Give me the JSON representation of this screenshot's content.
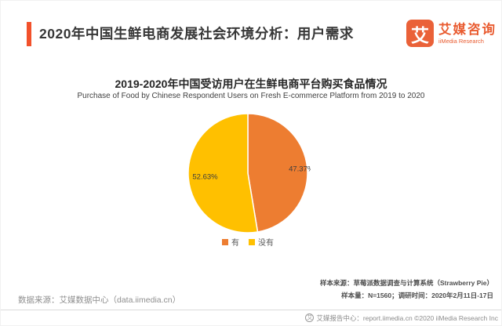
{
  "header": {
    "title": "2020年中国生鲜电商发展社会环境分析：用户需求"
  },
  "logo": {
    "mark": "艾",
    "name_cn": "艾媒咨询",
    "name_en": "iiMedia Research"
  },
  "chart_data": {
    "type": "pie",
    "title": "2019-2020年中国受访用户在生鲜电商平台购买食品情况",
    "subtitle": "Purchase of Food by Chinese Respondent Users on Fresh E-commerce Platform from 2019 to 2020",
    "unit": "%",
    "start_angle_deg": 0,
    "direction": "clockwise",
    "legend_position": "bottom",
    "slices": [
      {
        "label": "有",
        "value": 47.37,
        "display": "47.37%",
        "color": "#ED7D31",
        "label_radius": 0.9
      },
      {
        "label": "没有",
        "value": 52.63,
        "display": "52.63%",
        "color": "#FFC000",
        "label_radius": 0.72
      }
    ]
  },
  "footnotes": {
    "data_source": "数据来源：艾媒数据中心（data.iimedia.cn）",
    "sample_source": "样本来源：草莓派数据调查与计算系统（Strawberry Pie）",
    "sample_info": "样本量：N=1560；调研时间：2020年2月11日-17日"
  },
  "footer": {
    "report_center": "艾媒报告中心：report.iimedia.cn ©2020 iiMedia Research Inc"
  },
  "colors": {
    "accent": "#F2512B",
    "pie_slice_stroke": "#FFFFFF",
    "pie_label_text": "#3d3d3d"
  }
}
